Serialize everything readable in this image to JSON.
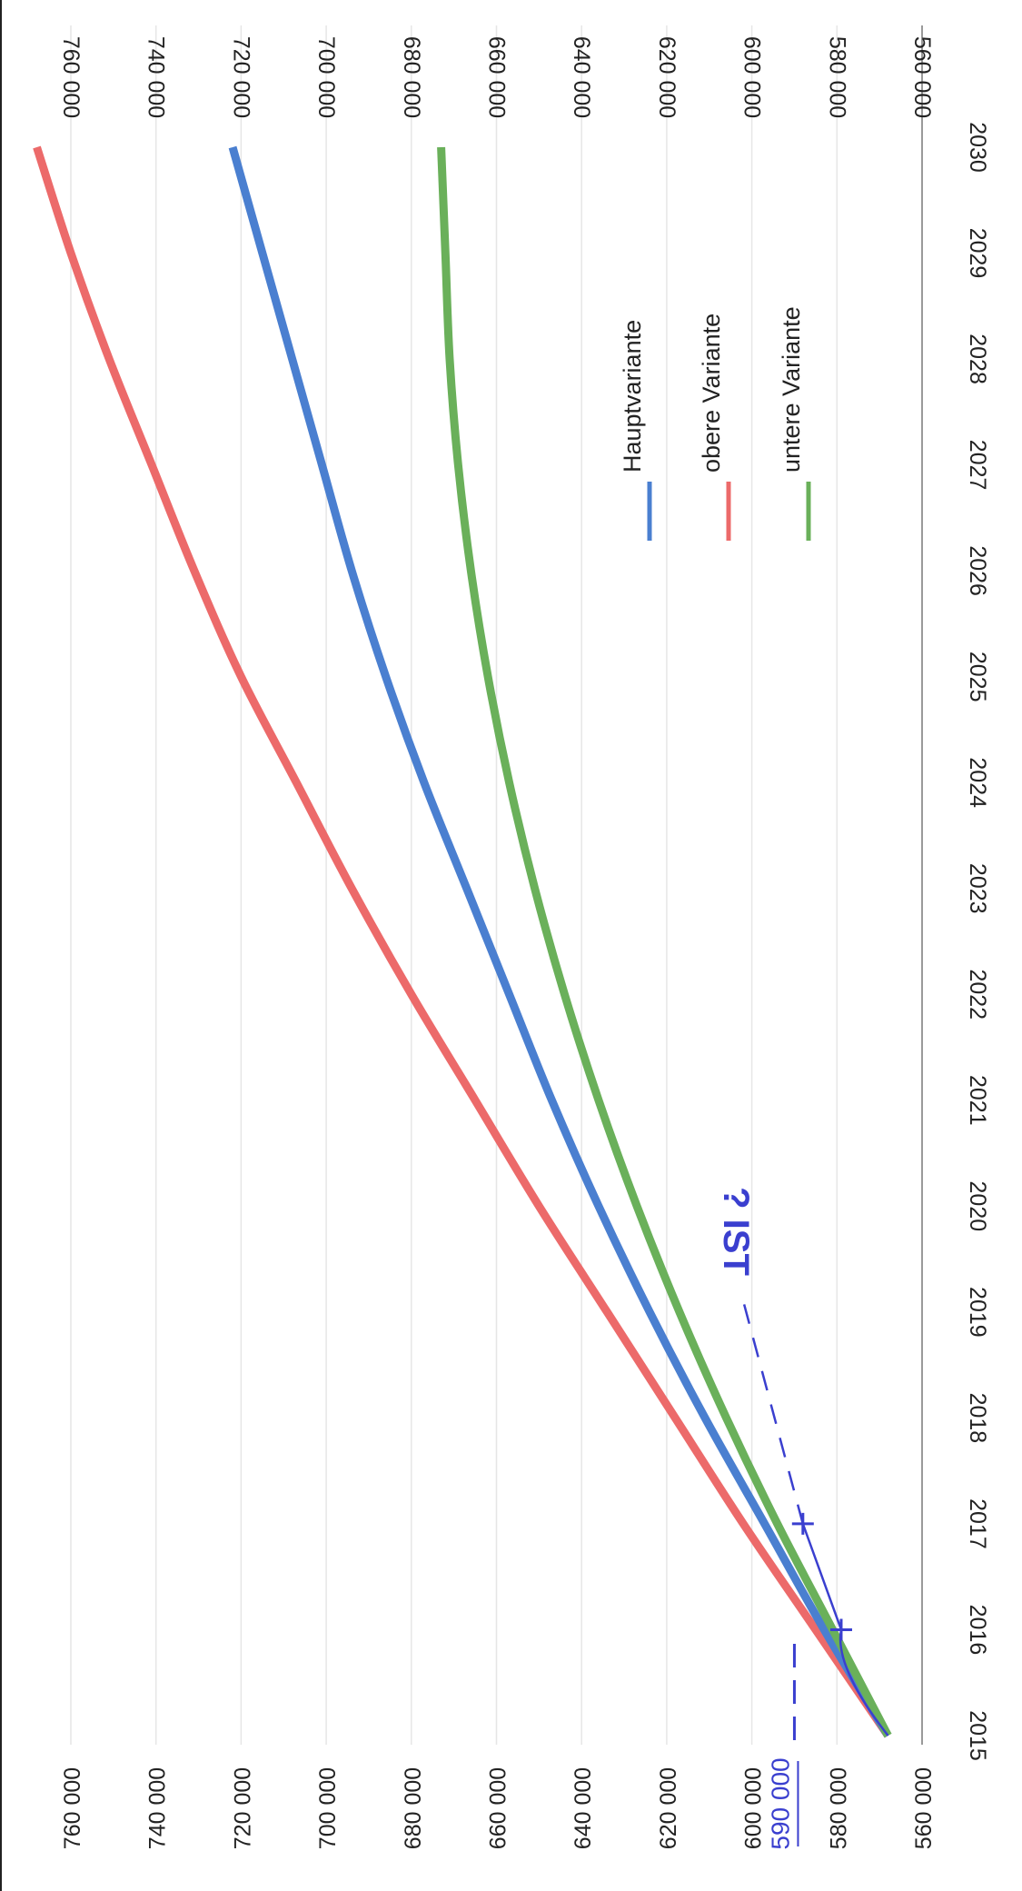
{
  "chart_data": {
    "type": "line",
    "orientation": "rotated-90-clockwise",
    "x": [
      2015,
      2016,
      2017,
      2018,
      2019,
      2020,
      2021,
      2022,
      2023,
      2024,
      2025,
      2026,
      2027,
      2028,
      2029,
      2030
    ],
    "xlim": [
      2015,
      2030
    ],
    "ylim": [
      560000,
      760000
    ],
    "y_ticks": [
      560000,
      580000,
      600000,
      620000,
      640000,
      660000,
      680000,
      700000,
      720000,
      740000,
      760000
    ],
    "y_tick_labels": [
      "560 000",
      "580 000",
      "600 000",
      "620 000",
      "640 000",
      "660 000",
      "680 000",
      "700 000",
      "720 000",
      "740 000",
      "760 000"
    ],
    "x_tick_labels": [
      "2015",
      "2016",
      "2017",
      "2018",
      "2019",
      "2020",
      "2021",
      "2022",
      "2023",
      "2024",
      "2025",
      "2026",
      "2027",
      "2028",
      "2029",
      "2030"
    ],
    "grid": true,
    "legend_position": "upper-right",
    "series": [
      {
        "name": "Hauptvariante",
        "color": "#4a7fd0",
        "values": [
          568000,
          583000,
          597000,
          611000,
          624000,
          636000,
          647000,
          657000,
          667000,
          677000,
          686000,
          694000,
          701000,
          708000,
          715000,
          722000
        ]
      },
      {
        "name": "obere Variante",
        "color": "#ec6a6a",
        "values": [
          568000,
          585000,
          602000,
          618000,
          634000,
          650000,
          665000,
          680000,
          694000,
          707000,
          720000,
          731000,
          741000,
          751000,
          760000,
          768000
        ]
      },
      {
        "name": "untere Variante",
        "color": "#6ab05a",
        "values": [
          568000,
          581000,
          594000,
          606000,
          617000,
          627000,
          636000,
          644000,
          651000,
          657000,
          662000,
          666000,
          669000,
          671000,
          672000,
          673000
        ]
      }
    ],
    "annotations": {
      "handwritten_value": "590 000",
      "handwritten_note": "? IST",
      "ist_points": [
        {
          "x": 2016,
          "y": 579000
        },
        {
          "x": 2017,
          "y": 588000
        }
      ]
    }
  }
}
